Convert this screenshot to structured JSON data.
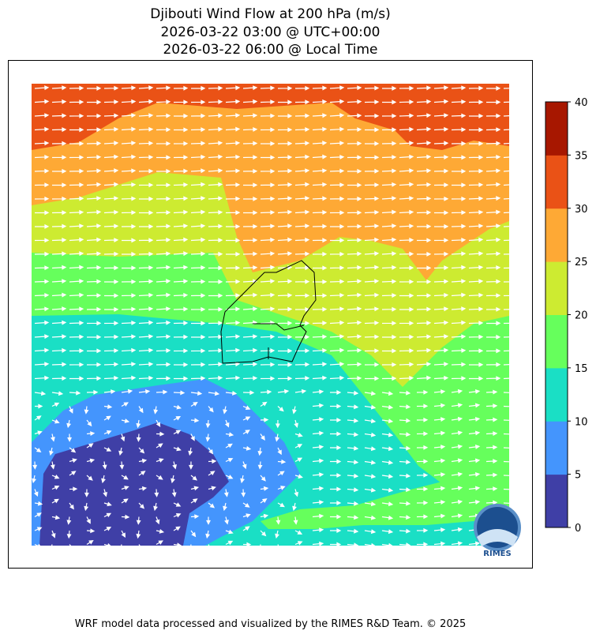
{
  "chart_data": {
    "type": "heatmap",
    "title": [
      "Djibouti Wind Flow at 200 hPa (m/s)",
      "2026-03-22 03:00 @ UTC+00:00",
      "2026-03-22 06:00 @ Local Time"
    ],
    "colorbar": {
      "levels": [
        0,
        5,
        10,
        15,
        20,
        25,
        30,
        35,
        40
      ],
      "tick_labels": [
        "0",
        "5",
        "10",
        "15",
        "20",
        "25",
        "30",
        "35",
        "40"
      ],
      "colors": [
        "#3f3fa6",
        "#4495fd",
        "#1adfc5",
        "#66ff5c",
        "#cdeb31",
        "#fea935",
        "#ea5216",
        "#a71700"
      ]
    },
    "vectors": "wind arrows, mostly westerly flow (pointing east); weak, variable arrows in the southwest",
    "country_outline": "Djibouti",
    "logo_text": "RIMES"
  },
  "footer": "WRF model data processed and visualized by the RIMES R&D Team. © 2025"
}
